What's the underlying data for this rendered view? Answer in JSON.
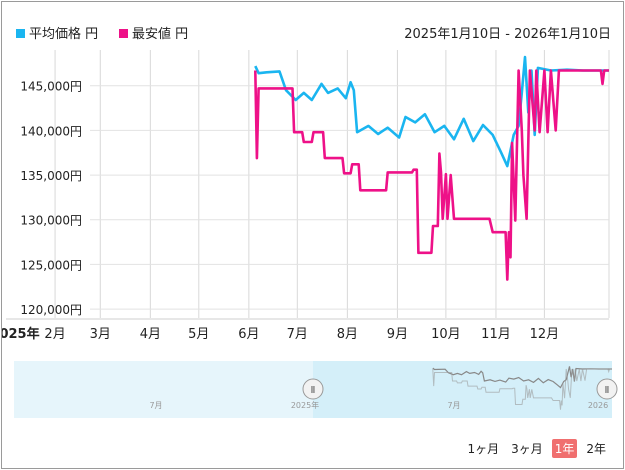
{
  "legend": [
    {
      "label": "平均価格 円",
      "color": "#1ab5f0"
    },
    {
      "label": "最安値 円",
      "color": "#ee1188"
    }
  ],
  "date_range": "2025年1月10日 - 2026年1月10日",
  "zoom_buttons": [
    {
      "label": "1ヶ月",
      "active": false
    },
    {
      "label": "3ヶ月",
      "active": false
    },
    {
      "label": "1年",
      "active": true
    },
    {
      "label": "2年",
      "active": false
    }
  ],
  "navigator": {
    "labels": [
      "7月",
      "2025年",
      "7月",
      "2026"
    ],
    "handle_glyph": "Ⅱ"
  },
  "chart_data": {
    "type": "line",
    "x_tick_labels": [
      "2025年",
      "2月",
      "3月",
      "4月",
      "5月",
      "6月",
      "7月",
      "8月",
      "9月",
      "10月",
      "11月",
      "12月"
    ],
    "y_tick_labels": [
      "120,000円",
      "125,000円",
      "130,000円",
      "135,000円",
      "140,000円",
      "145,000円"
    ],
    "xlim": [
      "2025-01-01",
      "2026-01-10"
    ],
    "ylim": [
      119000,
      149000
    ],
    "grid": true,
    "legend_position": "top-left",
    "series": [
      {
        "name": "平均価格 円",
        "color": "#1ab5f0",
        "points": [
          [
            "2025-06-05",
            147200
          ],
          [
            "2025-06-07",
            146400
          ],
          [
            "2025-06-12",
            146500
          ],
          [
            "2025-06-20",
            146600
          ],
          [
            "2025-06-24",
            144500
          ],
          [
            "2025-06-30",
            143400
          ],
          [
            "2025-07-05",
            144200
          ],
          [
            "2025-07-10",
            143400
          ],
          [
            "2025-07-16",
            145200
          ],
          [
            "2025-07-20",
            144200
          ],
          [
            "2025-07-26",
            144700
          ],
          [
            "2025-07-31",
            143600
          ],
          [
            "2025-08-03",
            145400
          ],
          [
            "2025-08-05",
            144500
          ],
          [
            "2025-08-07",
            139800
          ],
          [
            "2025-08-14",
            140500
          ],
          [
            "2025-08-20",
            139600
          ],
          [
            "2025-08-26",
            140300
          ],
          [
            "2025-09-02",
            139200
          ],
          [
            "2025-09-06",
            141500
          ],
          [
            "2025-09-12",
            140900
          ],
          [
            "2025-09-18",
            141800
          ],
          [
            "2025-09-24",
            139800
          ],
          [
            "2025-09-30",
            140500
          ],
          [
            "2025-10-06",
            139000
          ],
          [
            "2025-10-12",
            141300
          ],
          [
            "2025-10-18",
            138800
          ],
          [
            "2025-10-24",
            140600
          ],
          [
            "2025-10-30",
            139500
          ],
          [
            "2025-11-04",
            137600
          ],
          [
            "2025-11-08",
            136000
          ],
          [
            "2025-11-12",
            139500
          ],
          [
            "2025-11-15",
            140500
          ],
          [
            "2025-11-17",
            144200
          ],
          [
            "2025-11-19",
            148200
          ],
          [
            "2025-11-21",
            142000
          ],
          [
            "2025-11-23",
            146700
          ],
          [
            "2025-11-25",
            139500
          ],
          [
            "2025-11-27",
            147000
          ],
          [
            "2025-12-05",
            146700
          ],
          [
            "2025-12-15",
            146800
          ],
          [
            "2025-12-25",
            146700
          ],
          [
            "2026-01-10",
            146700
          ]
        ]
      },
      {
        "name": "最安値 円",
        "color": "#ee1188",
        "points": [
          [
            "2025-06-05",
            146700
          ],
          [
            "2025-06-06",
            136900
          ],
          [
            "2025-06-07",
            144700
          ],
          [
            "2025-06-28",
            144700
          ],
          [
            "2025-06-29",
            139800
          ],
          [
            "2025-07-04",
            139800
          ],
          [
            "2025-07-05",
            138700
          ],
          [
            "2025-07-10",
            138700
          ],
          [
            "2025-07-11",
            139800
          ],
          [
            "2025-07-17",
            139800
          ],
          [
            "2025-07-18",
            136900
          ],
          [
            "2025-07-29",
            136900
          ],
          [
            "2025-07-30",
            135200
          ],
          [
            "2025-08-03",
            135200
          ],
          [
            "2025-08-04",
            136200
          ],
          [
            "2025-08-08",
            136200
          ],
          [
            "2025-08-09",
            133300
          ],
          [
            "2025-08-25",
            133300
          ],
          [
            "2025-08-26",
            135300
          ],
          [
            "2025-09-10",
            135300
          ],
          [
            "2025-09-11",
            135600
          ],
          [
            "2025-09-13",
            135600
          ],
          [
            "2025-09-14",
            126300
          ],
          [
            "2025-09-22",
            126300
          ],
          [
            "2025-09-23",
            129300
          ],
          [
            "2025-09-26",
            129300
          ],
          [
            "2025-09-27",
            137400
          ],
          [
            "2025-09-28",
            135300
          ],
          [
            "2025-09-29",
            130100
          ],
          [
            "2025-10-01",
            135100
          ],
          [
            "2025-10-02",
            130100
          ],
          [
            "2025-10-04",
            135000
          ],
          [
            "2025-10-06",
            130100
          ],
          [
            "2025-10-28",
            130100
          ],
          [
            "2025-10-30",
            128600
          ],
          [
            "2025-11-07",
            128600
          ],
          [
            "2025-11-08",
            123300
          ],
          [
            "2025-11-09",
            128600
          ],
          [
            "2025-11-10",
            125800
          ],
          [
            "2025-11-11",
            138600
          ],
          [
            "2025-11-13",
            129900
          ],
          [
            "2025-11-15",
            146700
          ],
          [
            "2025-11-17",
            140000
          ],
          [
            "2025-11-18",
            135000
          ],
          [
            "2025-11-20",
            130100
          ],
          [
            "2025-11-22",
            146700
          ],
          [
            "2025-11-25",
            140000
          ],
          [
            "2025-11-26",
            146700
          ],
          [
            "2025-11-28",
            139800
          ],
          [
            "2025-12-01",
            146700
          ],
          [
            "2025-12-03",
            139800
          ],
          [
            "2025-12-05",
            146700
          ],
          [
            "2025-12-08",
            140000
          ],
          [
            "2025-12-10",
            146700
          ],
          [
            "2026-01-05",
            146700
          ],
          [
            "2026-01-06",
            145200
          ],
          [
            "2026-01-07",
            146700
          ],
          [
            "2026-01-10",
            146700
          ]
        ]
      }
    ]
  }
}
